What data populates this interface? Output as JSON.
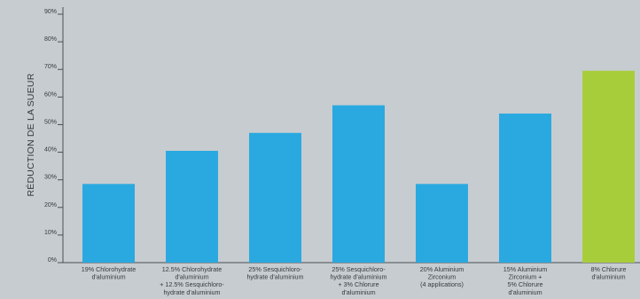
{
  "colors": {
    "background": "#c7ccd0",
    "bar_default": "#2aa9e0",
    "bar_highlight": "#a8cd3a",
    "axis": "#4a4f55",
    "text": "#343a40"
  },
  "chart_data": {
    "type": "bar",
    "ylabel": "RÉDUCTION DE LA SUEUR",
    "xlabel": "",
    "ylim": [
      0,
      90
    ],
    "grid": false,
    "y_ticks": [
      {
        "value": 0,
        "label": "0%"
      },
      {
        "value": 10,
        "label": "10%"
      },
      {
        "value": 20,
        "label": "20%"
      },
      {
        "value": 30,
        "label": "30%"
      },
      {
        "value": 40,
        "label": "40%"
      },
      {
        "value": 50,
        "label": "50%"
      },
      {
        "value": 60,
        "label": "60%"
      },
      {
        "value": 70,
        "label": "70%"
      },
      {
        "value": 80,
        "label": "80%"
      },
      {
        "value": 90,
        "label": "90%"
      }
    ],
    "categories": [
      [
        "19% Chlorohydrate",
        "d'aluminium"
      ],
      [
        "12.5% Chlorohydrate",
        "d'aluminium",
        "+ 12.5% Sesquichloro-",
        "hydrate d'aluminium"
      ],
      [
        "25% Sesquichloro-",
        "hydrate d'aluminium"
      ],
      [
        "25% Sesquichloro-",
        "hydrate d'aluminium",
        "+ 3% Chlorure",
        "d'aluminium"
      ],
      [
        "20% Aluminium",
        "Zirconium",
        "(4 applications)"
      ],
      [
        "15% Aluminium",
        "Zirconium +",
        "5% Chlorure",
        "d'aluminium"
      ],
      [
        "8% Chlorure",
        "d'aluminium"
      ]
    ],
    "values": [
      28.5,
      40.5,
      47,
      57,
      28.5,
      54,
      69.5
    ],
    "highlight_index": 6
  }
}
